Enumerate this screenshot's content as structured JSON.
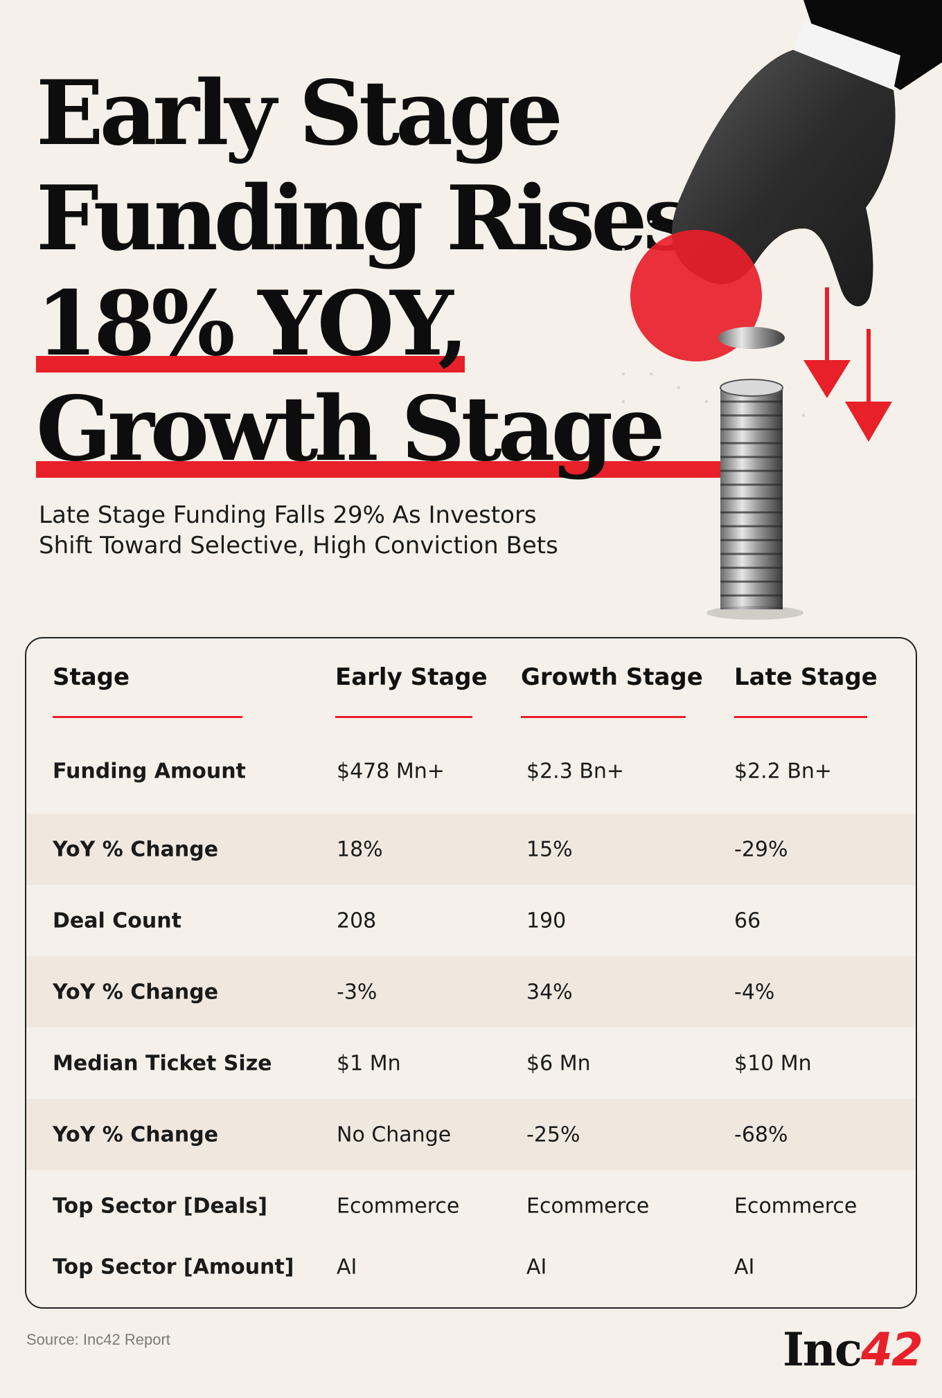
{
  "headline": {
    "line1": "Early Stage",
    "line2": "Funding Rises",
    "line3": "18% YOY,",
    "line4": "Growth Stage"
  },
  "subhead": {
    "line1": "Late Stage Funding Falls 29% As Investors",
    "line2": "Shift Toward Selective, High Conviction Bets"
  },
  "colors": {
    "accent": "#e8202a",
    "background": "#f5f1ea",
    "text": "#111111",
    "row_shade": "#f0e8df"
  },
  "table": {
    "headers": [
      "Stage",
      "Early Stage",
      "Growth Stage",
      "Late Stage"
    ],
    "rows": [
      [
        "Funding Amount",
        "$478 Mn+",
        "$2.3 Bn+",
        "$2.2 Bn+"
      ],
      [
        "YoY % Change",
        "18%",
        "15%",
        "-29%"
      ],
      [
        "Deal Count",
        "208",
        "190",
        "66"
      ],
      [
        "YoY % Change",
        "-3%",
        "34%",
        "-4%"
      ],
      [
        "Median Ticket Size",
        "$1 Mn",
        "$6 Mn",
        "$10 Mn"
      ],
      [
        "YoY % Change",
        "No Change",
        "-25%",
        "-68%"
      ],
      [
        "Top Sector [Deals]",
        "Ecommerce",
        "Ecommerce",
        "Ecommerce"
      ],
      [
        "Top Sector [Amount]",
        "AI",
        "AI",
        "AI"
      ]
    ]
  },
  "footer": {
    "source": "Source: Inc42 Report",
    "brand_text": "Inc",
    "brand_num": "42"
  },
  "icons": [
    "hand-dropping-coin-illustration",
    "coin-stack-icon",
    "down-arrow-icon",
    "red-circle-shape"
  ]
}
